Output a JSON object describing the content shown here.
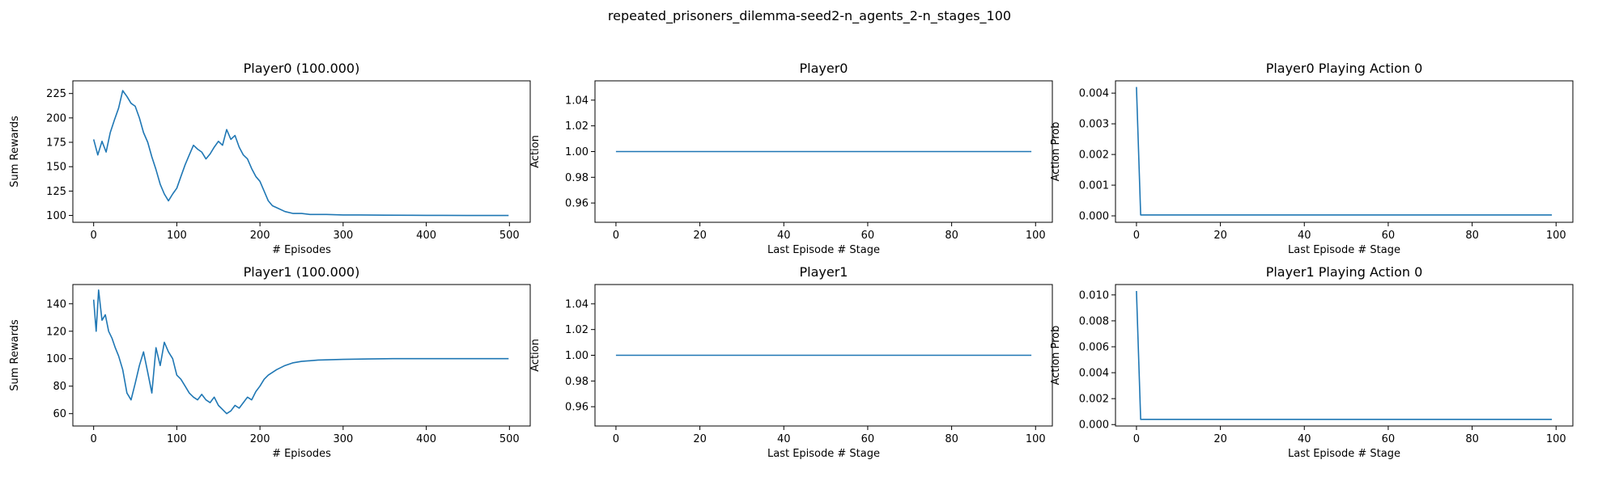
{
  "suptitle": "repeated_prisoners_dilemma-seed2-n_agents_2-n_stages_100",
  "chart_data": [
    {
      "type": "line",
      "title": "Player0 (100.000)",
      "xlabel": "# Episodes",
      "ylabel": "Sum Rewards",
      "xlim": [
        -25,
        525
      ],
      "ylim": [
        93,
        238
      ],
      "xticks": [
        0,
        100,
        200,
        300,
        400,
        500
      ],
      "xtick_labels": [
        "0",
        "100",
        "200",
        "300",
        "400",
        "500"
      ],
      "yticks": [
        100,
        125,
        150,
        175,
        200,
        225
      ],
      "ytick_labels": [
        "100",
        "125",
        "150",
        "175",
        "200",
        "225"
      ],
      "series": [
        {
          "x": [
            0,
            5,
            10,
            15,
            20,
            25,
            30,
            35,
            40,
            45,
            50,
            55,
            60,
            65,
            70,
            75,
            80,
            85,
            90,
            95,
            100,
            105,
            110,
            115,
            120,
            125,
            130,
            135,
            140,
            145,
            150,
            155,
            160,
            165,
            170,
            175,
            180,
            185,
            190,
            195,
            200,
            205,
            210,
            215,
            220,
            230,
            240,
            250,
            260,
            280,
            300,
            320,
            350,
            380,
            400,
            420,
            450,
            480,
            499
          ],
          "y": [
            178,
            162,
            176,
            165,
            185,
            198,
            210,
            228,
            222,
            215,
            212,
            200,
            185,
            175,
            160,
            147,
            132,
            122,
            115,
            122,
            128,
            140,
            152,
            162,
            172,
            168,
            165,
            158,
            163,
            170,
            176,
            172,
            188,
            178,
            182,
            170,
            162,
            158,
            148,
            140,
            135,
            125,
            115,
            110,
            108,
            104,
            102,
            102,
            101,
            101,
            100.5,
            100.5,
            100.3,
            100.2,
            100.1,
            100.1,
            100,
            100,
            100
          ]
        }
      ]
    },
    {
      "type": "line",
      "title": "Player0",
      "xlabel": "Last Episode # Stage",
      "ylabel": "Action",
      "xlim": [
        -5,
        104
      ],
      "ylim": [
        0.945,
        1.055
      ],
      "xticks": [
        0,
        20,
        40,
        60,
        80,
        100
      ],
      "xtick_labels": [
        "0",
        "20",
        "40",
        "60",
        "80",
        "100"
      ],
      "yticks": [
        0.96,
        0.98,
        1.0,
        1.02,
        1.04
      ],
      "ytick_labels": [
        "0.96",
        "0.98",
        "1.00",
        "1.02",
        "1.04"
      ],
      "series": [
        {
          "x": [
            0,
            99
          ],
          "y": [
            1.0,
            1.0
          ]
        }
      ]
    },
    {
      "type": "line",
      "title": "Player0 Playing Action 0",
      "xlabel": "Last Episode # Stage",
      "ylabel": "Action Prob",
      "xlim": [
        -5,
        104
      ],
      "ylim": [
        -0.00021,
        0.0044
      ],
      "xticks": [
        0,
        20,
        40,
        60,
        80,
        100
      ],
      "xtick_labels": [
        "0",
        "20",
        "40",
        "60",
        "80",
        "100"
      ],
      "yticks": [
        0.0,
        0.001,
        0.002,
        0.003,
        0.004
      ],
      "ytick_labels": [
        "0.000",
        "0.001",
        "0.002",
        "0.003",
        "0.004"
      ],
      "series": [
        {
          "x": [
            0,
            1,
            99
          ],
          "y": [
            0.0042,
            3e-05,
            3e-05
          ]
        }
      ]
    },
    {
      "type": "line",
      "title": "Player1 (100.000)",
      "xlabel": "# Episodes",
      "ylabel": "Sum Rewards",
      "xlim": [
        -25,
        525
      ],
      "ylim": [
        51,
        154
      ],
      "xticks": [
        0,
        100,
        200,
        300,
        400,
        500
      ],
      "xtick_labels": [
        "0",
        "100",
        "200",
        "300",
        "400",
        "500"
      ],
      "yticks": [
        60,
        80,
        100,
        120,
        140
      ],
      "ytick_labels": [
        "60",
        "80",
        "100",
        "120",
        "140"
      ],
      "series": [
        {
          "x": [
            0,
            3,
            6,
            10,
            14,
            18,
            22,
            26,
            30,
            35,
            40,
            45,
            50,
            55,
            60,
            65,
            70,
            75,
            80,
            85,
            90,
            95,
            100,
            105,
            110,
            115,
            120,
            125,
            130,
            135,
            140,
            145,
            150,
            155,
            160,
            165,
            170,
            175,
            180,
            185,
            190,
            195,
            200,
            205,
            210,
            220,
            230,
            240,
            250,
            270,
            300,
            330,
            360,
            400,
            430,
            460,
            499
          ],
          "y": [
            143,
            120,
            150,
            128,
            132,
            120,
            115,
            108,
            102,
            92,
            75,
            70,
            82,
            95,
            105,
            90,
            75,
            108,
            95,
            112,
            105,
            100,
            88,
            85,
            80,
            75,
            72,
            70,
            74,
            70,
            68,
            72,
            66,
            63,
            60,
            62,
            66,
            64,
            68,
            72,
            70,
            76,
            80,
            85,
            88,
            92,
            95,
            97,
            98,
            99,
            99.5,
            99.8,
            100,
            100,
            100,
            100,
            100
          ]
        }
      ]
    },
    {
      "type": "line",
      "title": "Player1",
      "xlabel": "Last Episode # Stage",
      "ylabel": "Action",
      "xlim": [
        -5,
        104
      ],
      "ylim": [
        0.945,
        1.055
      ],
      "xticks": [
        0,
        20,
        40,
        60,
        80,
        100
      ],
      "xtick_labels": [
        "0",
        "20",
        "40",
        "60",
        "80",
        "100"
      ],
      "yticks": [
        0.96,
        0.98,
        1.0,
        1.02,
        1.04
      ],
      "ytick_labels": [
        "0.96",
        "0.98",
        "1.00",
        "1.02",
        "1.04"
      ],
      "series": [
        {
          "x": [
            0,
            99
          ],
          "y": [
            1.0,
            1.0
          ]
        }
      ]
    },
    {
      "type": "line",
      "title": "Player1 Playing Action 0",
      "xlabel": "Last Episode # Stage",
      "ylabel": "Action Prob",
      "xlim": [
        -5,
        104
      ],
      "ylim": [
        -0.00011,
        0.0108
      ],
      "xticks": [
        0,
        20,
        40,
        60,
        80,
        100
      ],
      "xtick_labels": [
        "0",
        "20",
        "40",
        "60",
        "80",
        "100"
      ],
      "yticks": [
        0.0,
        0.002,
        0.004,
        0.006,
        0.008,
        0.01
      ],
      "ytick_labels": [
        "0.000",
        "0.002",
        "0.004",
        "0.006",
        "0.008",
        "0.010"
      ],
      "series": [
        {
          "x": [
            0,
            1,
            99
          ],
          "y": [
            0.0103,
            0.0004,
            0.0004
          ]
        }
      ]
    }
  ]
}
